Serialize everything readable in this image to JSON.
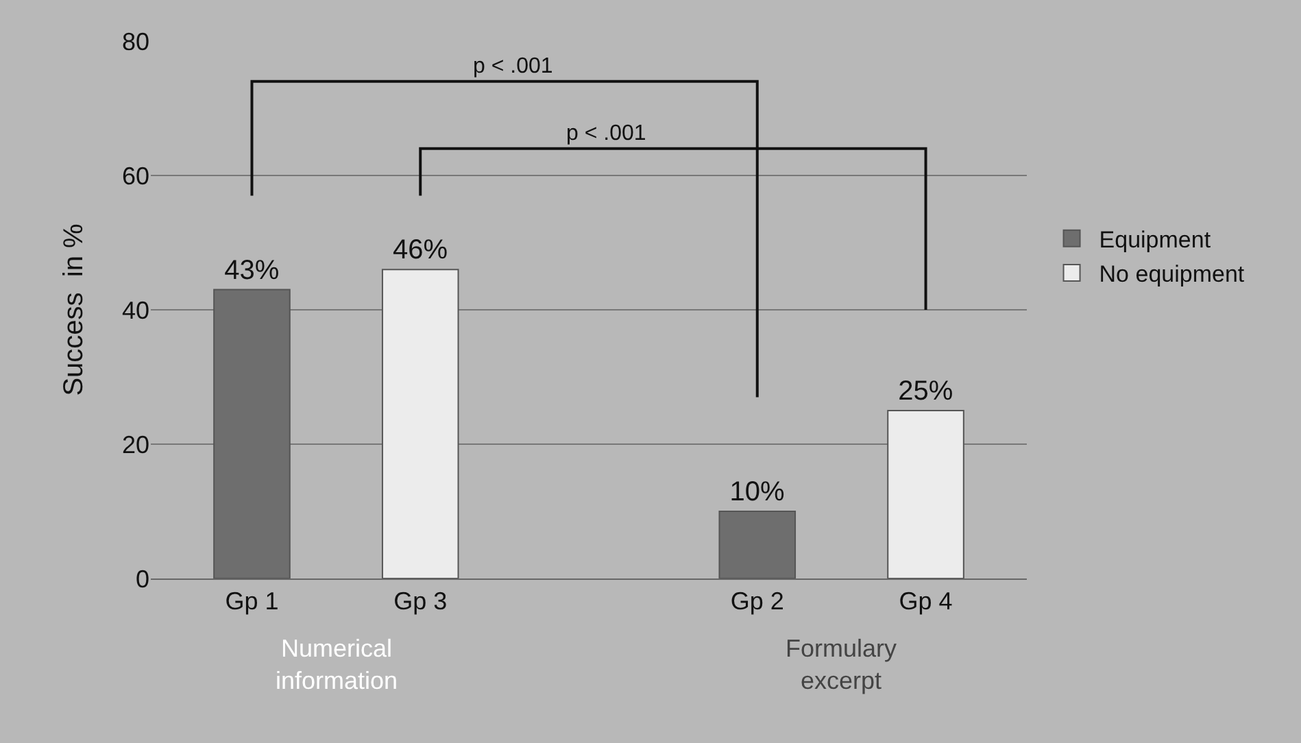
{
  "chart_data": {
    "type": "bar",
    "ylabel": "Success  in %",
    "categories": [
      "Gp 1",
      "Gp 3",
      null,
      "Gp 2",
      "Gp 4"
    ],
    "series": [
      {
        "name": "Equipment",
        "color": "#6e6e6e",
        "values": [
          43,
          null,
          null,
          10,
          null
        ],
        "value_labels": [
          "43%",
          null,
          null,
          "10%",
          null
        ]
      },
      {
        "name": "No equipment",
        "color": "#ececec",
        "values": [
          null,
          46,
          null,
          null,
          25
        ],
        "value_labels": [
          null,
          "46%",
          null,
          null,
          "25%"
        ]
      }
    ],
    "ylim": [
      0,
      80
    ],
    "yticks": [
      0,
      20,
      40,
      60,
      80
    ],
    "grid": "y",
    "legend": "right",
    "annotations": [
      "Numerical information",
      "Formulary excerpt",
      "p < .001",
      "p < .001"
    ]
  }
}
